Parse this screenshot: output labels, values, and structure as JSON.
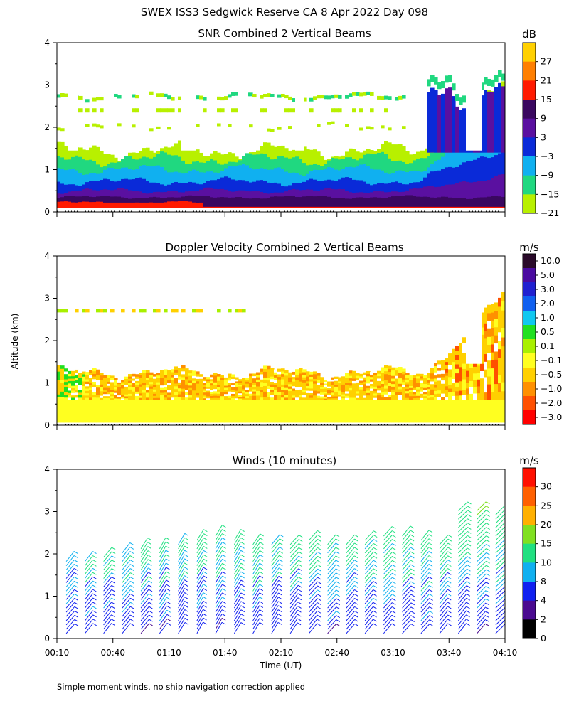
{
  "title": "SWEX ISS3 Sedgwick Reserve CA   8 Apr 2022 Day 098",
  "ylabel": "Altitude (km)",
  "xlabel": "Time (UT)",
  "footnote": "Simple moment winds, no ship navigation correction applied",
  "chart_data": [
    {
      "type": "heatmap",
      "title": "SNR Combined 2 Vertical Beams",
      "ylim": [
        0,
        4
      ],
      "yticks": [
        "0",
        "1",
        "2",
        "3",
        "4"
      ],
      "xlim": [
        "00:10",
        "04:10"
      ],
      "unit": "dB",
      "colorbar": {
        "labels": [
          "27",
          "21",
          "15",
          "9",
          "3",
          "−3",
          "−9",
          "−15",
          "−21"
        ],
        "colors": [
          "#ffd000",
          "#ff7f00",
          "#ff1a00",
          "#3a0860",
          "#5a10a0",
          "#0a2ad8",
          "#10b0f0",
          "#20d880",
          "#b8f000"
        ]
      },
      "layers": [
        {
          "level": "-21",
          "color": "#b8f000"
        },
        {
          "level": "-15",
          "color": "#20d880"
        },
        {
          "level": "-9",
          "color": "#10b0f0"
        },
        {
          "level": "-3",
          "color": "#0a2ad8"
        },
        {
          "level": "3",
          "color": "#5a10a0"
        },
        {
          "level": "9",
          "color": "#3a0860"
        },
        {
          "level": "15",
          "color": "#ff1a00"
        }
      ]
    },
    {
      "type": "heatmap",
      "title": "Doppler Velocity Combined 2 Vertical Beams",
      "ylim": [
        0,
        4
      ],
      "yticks": [
        "0",
        "1",
        "2",
        "3",
        "4"
      ],
      "xlim": [
        "00:10",
        "04:10"
      ],
      "unit": "m/s",
      "colorbar": {
        "labels": [
          "10.0",
          "5.0",
          "3.0",
          "2.0",
          "1.0",
          "0.5",
          "0.1",
          "−0.1",
          "−0.5",
          "−1.0",
          "−2.0",
          "−3.0"
        ],
        "colors": [
          "#2a0a2a",
          "#4a0aa0",
          "#2020d0",
          "#1060f0",
          "#10c8f0",
          "#20e020",
          "#a8f000",
          "#ffff20",
          "#ffd000",
          "#ff9000",
          "#ff5000",
          "#ff0000"
        ]
      },
      "layers": [
        {
          "level": "-0.1",
          "color": "#ffff20"
        },
        {
          "level": "-0.5",
          "color": "#ffd000"
        },
        {
          "level": "-1.0",
          "color": "#ff9000"
        }
      ]
    },
    {
      "type": "wind-barbs",
      "title": "Winds (10 minutes)",
      "ylim": [
        0,
        4
      ],
      "yticks": [
        "0",
        "1",
        "2",
        "3",
        "4"
      ],
      "xticks": [
        "00:10",
        "00:40",
        "01:10",
        "01:40",
        "02:10",
        "02:40",
        "03:10",
        "03:40",
        "04:10"
      ],
      "unit": "m/s",
      "colorbar": {
        "labels": [
          "30",
          "25",
          "20",
          "15",
          "10",
          "8",
          "4",
          "2",
          "0"
        ],
        "colors": [
          "#ff1000",
          "#ff6000",
          "#ffb000",
          "#80e020",
          "#20e080",
          "#10b0f0",
          "#1020f0",
          "#4a0a90",
          "#000000"
        ]
      },
      "profile_times": [
        "00:10",
        "00:20",
        "00:30",
        "00:40",
        "00:50",
        "01:00",
        "01:10",
        "01:20",
        "01:30",
        "01:40",
        "01:50",
        "02:00",
        "02:10",
        "02:20",
        "02:30",
        "02:40",
        "02:50",
        "03:00",
        "03:10",
        "03:20",
        "03:30",
        "03:40",
        "03:50",
        "04:00"
      ]
    }
  ]
}
